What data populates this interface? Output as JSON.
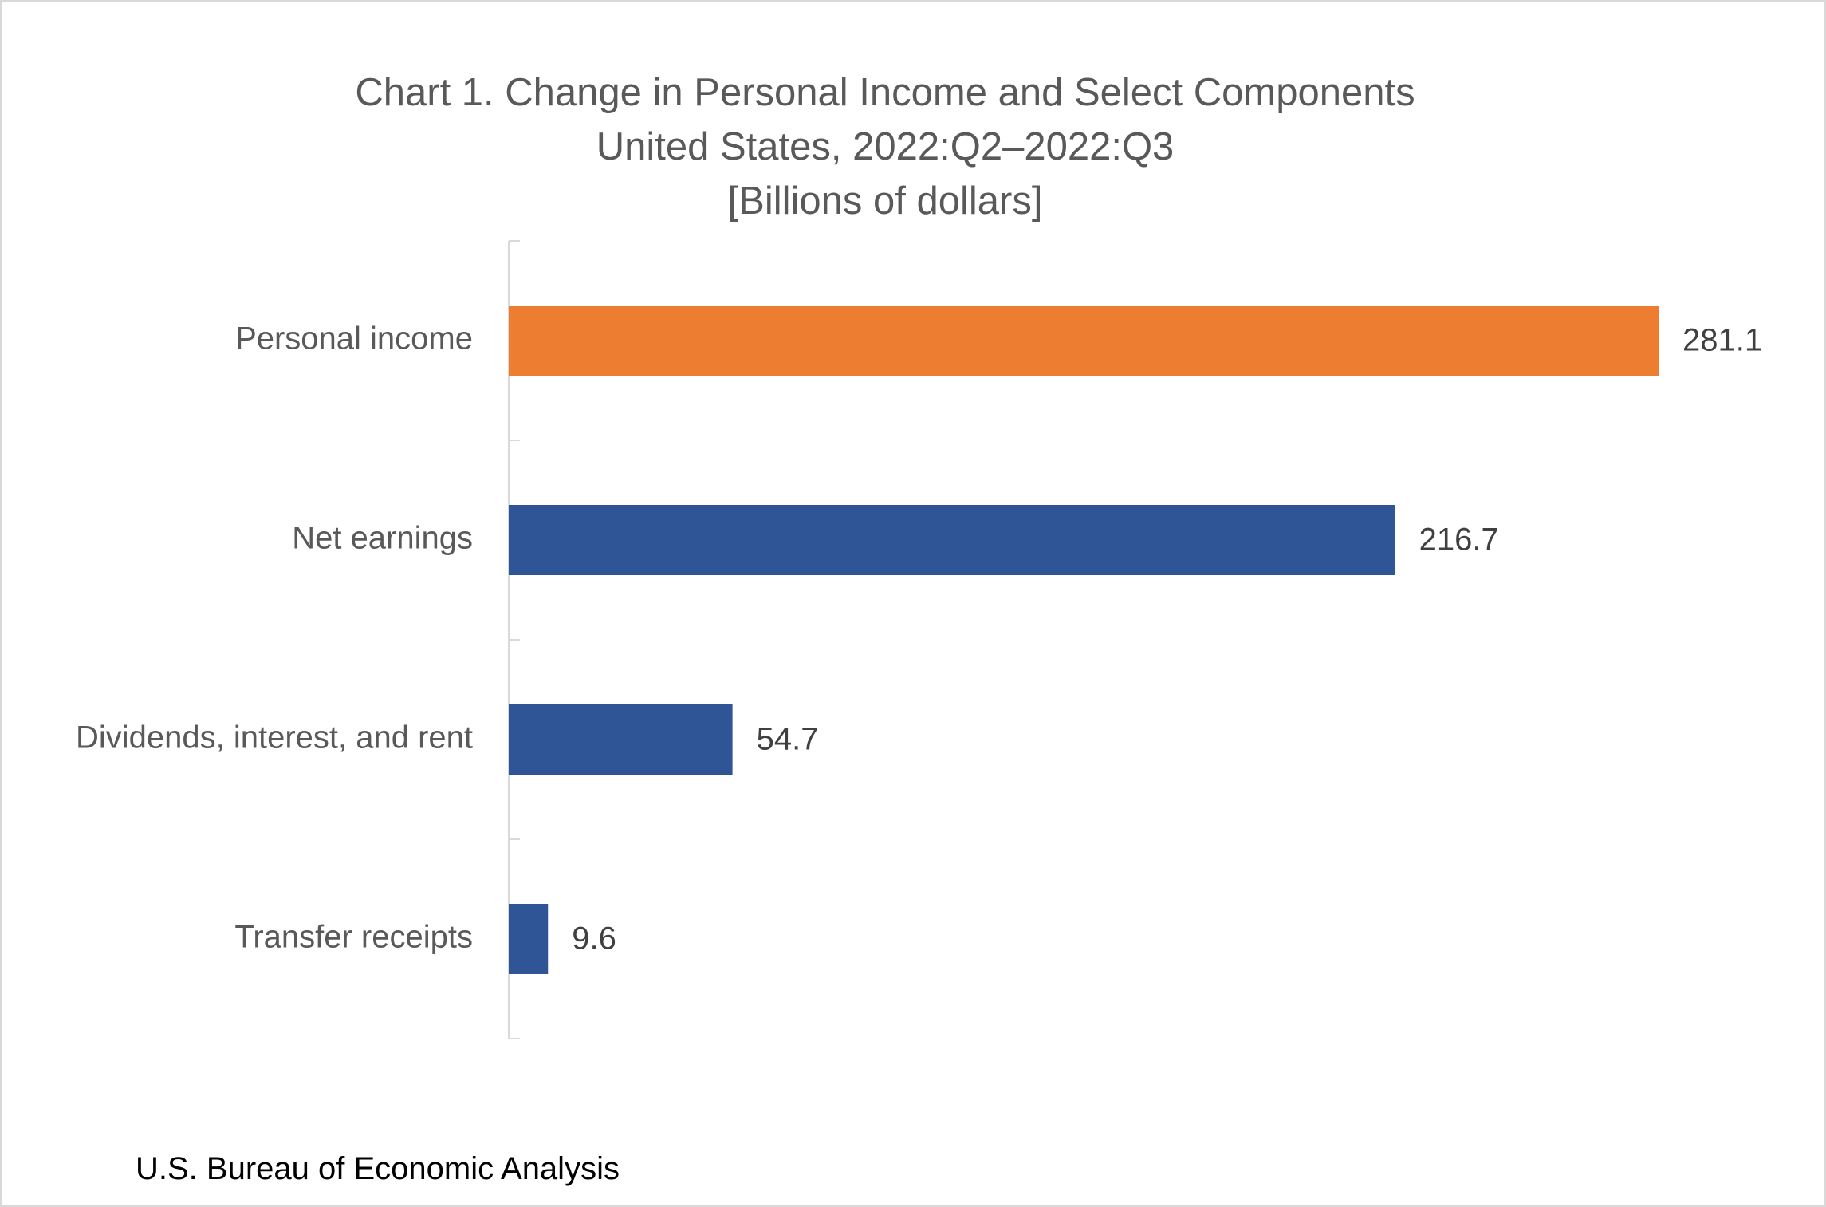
{
  "chart_data": {
    "type": "bar",
    "orientation": "horizontal",
    "title": "Chart 1. Change in Personal Income and Select Components",
    "subtitle": "United States, 2022:Q2–2022:Q3",
    "unit_label": "[Billions of dollars]",
    "categories": [
      "Personal income",
      "Net earnings",
      "Dividends, interest, and rent",
      "Transfer receipts"
    ],
    "values": [
      281.1,
      216.7,
      54.7,
      9.6
    ],
    "value_labels": [
      "281.1",
      "216.7",
      "54.7",
      "9.6"
    ],
    "bar_colors": [
      "#ED7D31",
      "#2F5597",
      "#2F5597",
      "#2F5597"
    ],
    "xlim": [
      0,
      281.1
    ],
    "grid": false,
    "legend": "none",
    "source": "U.S. Bureau of Economic Analysis"
  }
}
